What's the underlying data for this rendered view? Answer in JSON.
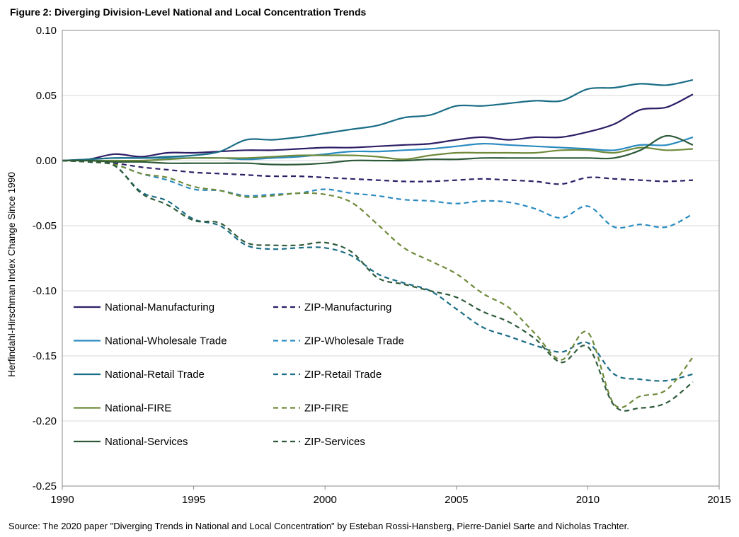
{
  "chart_data": {
    "type": "line",
    "title": "Figure 2: Diverging Division-Level National and Local Concentration Trends",
    "xlabel": "",
    "ylabel": "Herfindahl-Hirschman Index Change Since 1990",
    "xlim": [
      1990,
      2015
    ],
    "ylim": [
      -0.25,
      0.1
    ],
    "x_ticks": [
      1990,
      1995,
      2000,
      2005,
      2010,
      2015
    ],
    "x_tick_labels": [
      "1990",
      "1995",
      "2000",
      "2005",
      "2010",
      "2015"
    ],
    "y_ticks": [
      0.1,
      0.05,
      0.0,
      -0.05,
      -0.1,
      -0.15,
      -0.2,
      -0.25
    ],
    "y_tick_labels": [
      "0.10",
      "0.05",
      "0.00",
      "-0.05",
      "-0.10",
      "-0.15",
      "-0.20",
      "-0.25"
    ],
    "grid": "horizontal",
    "legend_position": "lower-left",
    "source": "Source: The 2020 paper \"Diverging Trends in National and Local Concentration\" by Esteban Rossi-Hansberg, Pierre-Daniel Sarte and Nicholas Trachter.",
    "series": [
      {
        "name": "National-Manufacturing",
        "color": "#2e1e66",
        "dashed": false,
        "x": [
          1990,
          1991,
          1992,
          1993,
          1994,
          1995,
          1996,
          1997,
          1998,
          1999,
          2000,
          2001,
          2002,
          2003,
          2004,
          2005,
          2006,
          2007,
          2008,
          2009,
          2010,
          2011,
          2012,
          2013,
          2014
        ],
        "y": [
          0.0,
          0.001,
          0.005,
          0.003,
          0.006,
          0.006,
          0.007,
          0.008,
          0.008,
          0.009,
          0.01,
          0.01,
          0.011,
          0.012,
          0.013,
          0.016,
          0.018,
          0.016,
          0.018,
          0.018,
          0.022,
          0.028,
          0.039,
          0.041,
          0.051
        ]
      },
      {
        "name": "ZIP-Manufacturing",
        "color": "#2e1e66",
        "dashed": true,
        "x": [
          1990,
          1991,
          1992,
          1993,
          1994,
          1995,
          1996,
          1997,
          1998,
          1999,
          2000,
          2001,
          2002,
          2003,
          2004,
          2005,
          2006,
          2007,
          2008,
          2009,
          2010,
          2011,
          2012,
          2013,
          2014
        ],
        "y": [
          0.0,
          -0.001,
          -0.002,
          -0.005,
          -0.007,
          -0.009,
          -0.01,
          -0.011,
          -0.012,
          -0.012,
          -0.013,
          -0.014,
          -0.015,
          -0.016,
          -0.016,
          -0.015,
          -0.014,
          -0.015,
          -0.016,
          -0.018,
          -0.013,
          -0.014,
          -0.015,
          -0.016,
          -0.015
        ]
      },
      {
        "name": "National-Wholesale Trade",
        "color": "#2a8bc0",
        "dashed": false,
        "x": [
          1990,
          1991,
          1992,
          1993,
          1994,
          1995,
          1996,
          1997,
          1998,
          1999,
          2000,
          2001,
          2002,
          2003,
          2004,
          2005,
          2006,
          2007,
          2008,
          2009,
          2010,
          2011,
          2012,
          2013,
          2014
        ],
        "y": [
          0.0,
          0.001,
          0.002,
          0.002,
          0.002,
          0.002,
          0.002,
          0.001,
          0.002,
          0.003,
          0.005,
          0.007,
          0.007,
          0.008,
          0.009,
          0.011,
          0.013,
          0.012,
          0.011,
          0.01,
          0.009,
          0.008,
          0.012,
          0.012,
          0.018
        ]
      },
      {
        "name": "ZIP-Wholesale Trade",
        "color": "#2a8bc0",
        "dashed": true,
        "x": [
          1990,
          1991,
          1992,
          1993,
          1994,
          1995,
          1996,
          1997,
          1998,
          1999,
          2000,
          2001,
          2002,
          2003,
          2004,
          2005,
          2006,
          2007,
          2008,
          2009,
          2010,
          2011,
          2012,
          2013,
          2014
        ],
        "y": [
          0.0,
          -0.001,
          -0.003,
          -0.01,
          -0.015,
          -0.022,
          -0.023,
          -0.027,
          -0.026,
          -0.025,
          -0.022,
          -0.025,
          -0.027,
          -0.03,
          -0.031,
          -0.033,
          -0.031,
          -0.032,
          -0.037,
          -0.044,
          -0.035,
          -0.051,
          -0.049,
          -0.051,
          -0.041
        ]
      },
      {
        "name": "National-Retail Trade",
        "color": "#1a6d86",
        "dashed": false,
        "x": [
          1990,
          1991,
          1992,
          1993,
          1994,
          1995,
          1996,
          1997,
          1998,
          1999,
          2000,
          2001,
          2002,
          2003,
          2004,
          2005,
          2006,
          2007,
          2008,
          2009,
          2010,
          2011,
          2012,
          2013,
          2014
        ],
        "y": [
          0.0,
          0.001,
          0.002,
          0.002,
          0.003,
          0.004,
          0.007,
          0.016,
          0.016,
          0.018,
          0.021,
          0.024,
          0.027,
          0.033,
          0.035,
          0.042,
          0.042,
          0.044,
          0.046,
          0.046,
          0.055,
          0.056,
          0.059,
          0.058,
          0.062
        ]
      },
      {
        "name": "ZIP-Retail Trade",
        "color": "#1a6d86",
        "dashed": true,
        "x": [
          1990,
          1991,
          1992,
          1993,
          1994,
          1995,
          1996,
          1997,
          1998,
          1999,
          2000,
          2001,
          2002,
          2003,
          2004,
          2005,
          2006,
          2007,
          2008,
          2009,
          2010,
          2011,
          2012,
          2013,
          2014
        ],
        "y": [
          0.0,
          -0.001,
          -0.004,
          -0.024,
          -0.031,
          -0.045,
          -0.05,
          -0.065,
          -0.068,
          -0.067,
          -0.067,
          -0.073,
          -0.087,
          -0.094,
          -0.1,
          -0.114,
          -0.128,
          -0.135,
          -0.142,
          -0.147,
          -0.14,
          -0.164,
          -0.168,
          -0.169,
          -0.164
        ]
      },
      {
        "name": "National-FIRE",
        "color": "#6f8a3a",
        "dashed": false,
        "x": [
          1990,
          1991,
          1992,
          1993,
          1994,
          1995,
          1996,
          1997,
          1998,
          1999,
          2000,
          2001,
          2002,
          2003,
          2004,
          2005,
          2006,
          2007,
          2008,
          2009,
          2010,
          2011,
          2012,
          2013,
          2014
        ],
        "y": [
          0.0,
          0.0,
          0.0,
          0.0,
          0.001,
          0.002,
          0.002,
          0.002,
          0.003,
          0.004,
          0.004,
          0.004,
          0.003,
          0.001,
          0.004,
          0.006,
          0.006,
          0.006,
          0.006,
          0.008,
          0.008,
          0.006,
          0.01,
          0.008,
          0.009
        ]
      },
      {
        "name": "ZIP-FIRE",
        "color": "#6f8a3a",
        "dashed": true,
        "x": [
          1990,
          1991,
          1992,
          1993,
          1994,
          1995,
          1996,
          1997,
          1998,
          1999,
          2000,
          2001,
          2002,
          2003,
          2004,
          2005,
          2006,
          2007,
          2008,
          2009,
          2010,
          2011,
          2012,
          2013,
          2014
        ],
        "y": [
          0.0,
          -0.001,
          -0.003,
          -0.01,
          -0.013,
          -0.02,
          -0.023,
          -0.028,
          -0.027,
          -0.025,
          -0.026,
          -0.032,
          -0.049,
          -0.067,
          -0.077,
          -0.087,
          -0.102,
          -0.113,
          -0.133,
          -0.153,
          -0.132,
          -0.187,
          -0.181,
          -0.176,
          -0.151
        ]
      },
      {
        "name": "National-Services",
        "color": "#2e5a3a",
        "dashed": false,
        "x": [
          1990,
          1991,
          1992,
          1993,
          1994,
          1995,
          1996,
          1997,
          1998,
          1999,
          2000,
          2001,
          2002,
          2003,
          2004,
          2005,
          2006,
          2007,
          2008,
          2009,
          2010,
          2011,
          2012,
          2013,
          2014
        ],
        "y": [
          0.0,
          0.0,
          -0.001,
          -0.001,
          -0.002,
          -0.002,
          -0.002,
          -0.002,
          -0.003,
          -0.003,
          -0.002,
          0.0,
          0.0,
          0.0,
          0.001,
          0.001,
          0.002,
          0.002,
          0.002,
          0.002,
          0.002,
          0.002,
          0.008,
          0.019,
          0.012
        ]
      },
      {
        "name": "ZIP-Services",
        "color": "#2e5a3a",
        "dashed": true,
        "x": [
          1990,
          1991,
          1992,
          1993,
          1994,
          1995,
          1996,
          1997,
          1998,
          1999,
          2000,
          2001,
          2002,
          2003,
          2004,
          2005,
          2006,
          2007,
          2008,
          2009,
          2010,
          2011,
          2012,
          2013,
          2014
        ],
        "y": [
          0.0,
          -0.001,
          -0.004,
          -0.025,
          -0.034,
          -0.046,
          -0.048,
          -0.063,
          -0.065,
          -0.065,
          -0.063,
          -0.07,
          -0.09,
          -0.095,
          -0.1,
          -0.105,
          -0.116,
          -0.124,
          -0.137,
          -0.155,
          -0.143,
          -0.188,
          -0.19,
          -0.186,
          -0.17
        ]
      }
    ]
  }
}
